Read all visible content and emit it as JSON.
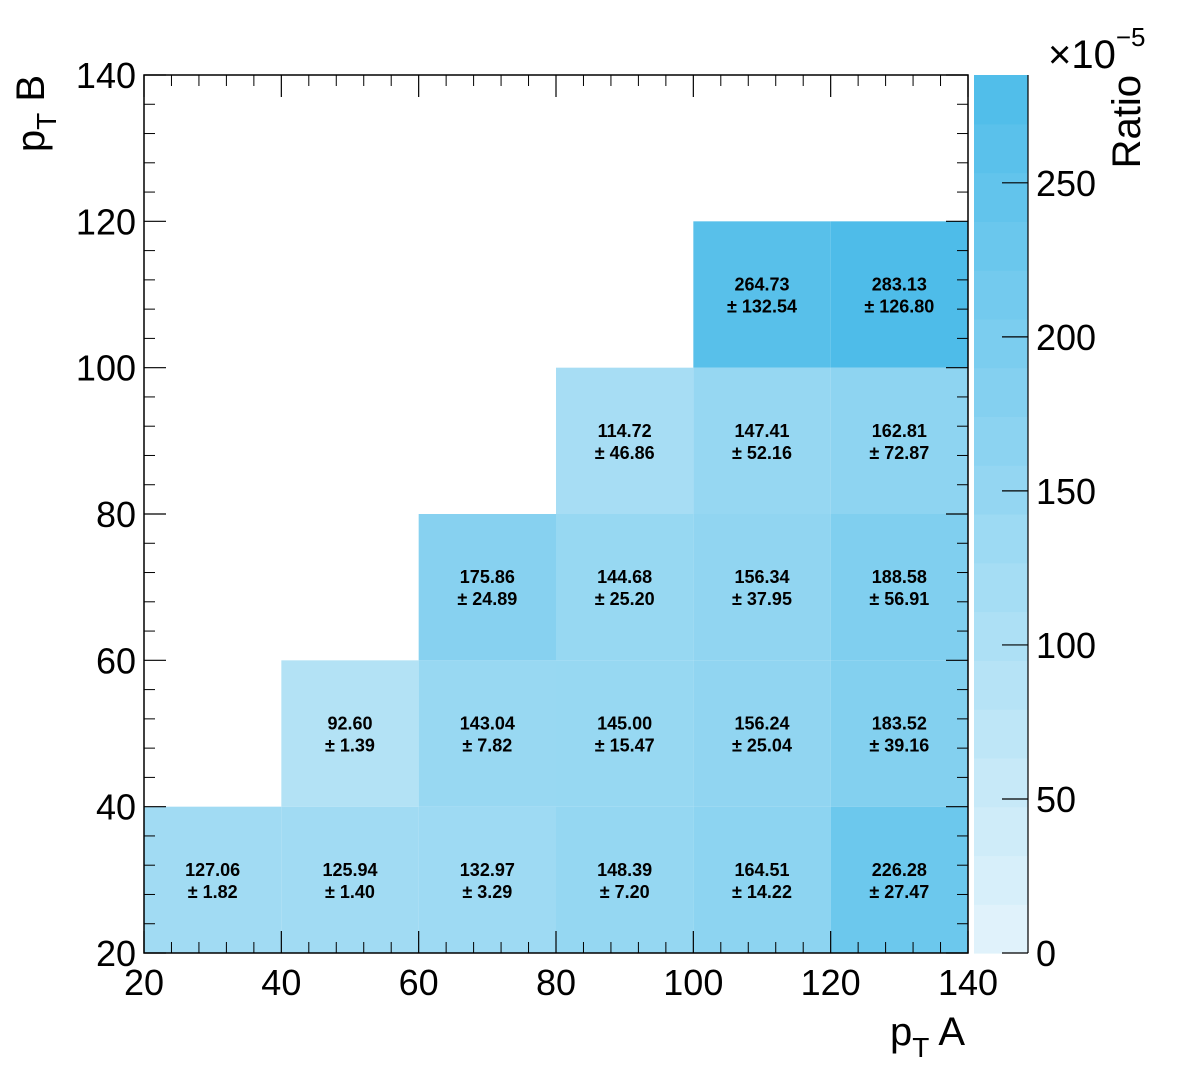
{
  "chart_data": {
    "type": "heatmap",
    "x_axis": {
      "label_main": "p",
      "label_sub": "T",
      "label_suffix": " A",
      "range": [
        20,
        140
      ],
      "ticks": [
        "20",
        "40",
        "60",
        "80",
        "100",
        "120",
        "140"
      ]
    },
    "y_axis": {
      "label_main": "p",
      "label_sub": "T",
      "label_suffix": " B",
      "range": [
        20,
        140
      ],
      "ticks": [
        "20",
        "40",
        "60",
        "80",
        "100",
        "120",
        "140"
      ]
    },
    "colorbar": {
      "label": "Ratio",
      "multiplier_base": "×10",
      "multiplier_exponent": "−5",
      "range": [
        0,
        285
      ],
      "ticks": [
        "0",
        "50",
        "100",
        "150",
        "200",
        "250"
      ],
      "color_low": "#e4f4fb",
      "color_high": "#4dbce9"
    },
    "bin_edges_x": [
      20,
      40,
      60,
      80,
      100,
      120,
      140
    ],
    "bin_edges_y": [
      20,
      40,
      60,
      80,
      100,
      120,
      140
    ],
    "cells": [
      {
        "x": [
          20,
          40
        ],
        "y": [
          20,
          40
        ],
        "value": 127.06,
        "value_text": "127.06",
        "error_text": "± 1.82"
      },
      {
        "x": [
          40,
          60
        ],
        "y": [
          20,
          40
        ],
        "value": 125.94,
        "value_text": "125.94",
        "error_text": "± 1.40"
      },
      {
        "x": [
          60,
          80
        ],
        "y": [
          20,
          40
        ],
        "value": 132.97,
        "value_text": "132.97",
        "error_text": "± 3.29"
      },
      {
        "x": [
          80,
          100
        ],
        "y": [
          20,
          40
        ],
        "value": 148.39,
        "value_text": "148.39",
        "error_text": "± 7.20"
      },
      {
        "x": [
          100,
          120
        ],
        "y": [
          20,
          40
        ],
        "value": 164.51,
        "value_text": "164.51",
        "error_text": "± 14.22"
      },
      {
        "x": [
          120,
          140
        ],
        "y": [
          20,
          40
        ],
        "value": 226.28,
        "value_text": "226.28",
        "error_text": "± 27.47"
      },
      {
        "x": [
          40,
          60
        ],
        "y": [
          40,
          60
        ],
        "value": 92.6,
        "value_text": "92.60",
        "error_text": "± 1.39"
      },
      {
        "x": [
          60,
          80
        ],
        "y": [
          40,
          60
        ],
        "value": 143.04,
        "value_text": "143.04",
        "error_text": "± 7.82"
      },
      {
        "x": [
          80,
          100
        ],
        "y": [
          40,
          60
        ],
        "value": 145.0,
        "value_text": "145.00",
        "error_text": "± 15.47"
      },
      {
        "x": [
          100,
          120
        ],
        "y": [
          40,
          60
        ],
        "value": 156.24,
        "value_text": "156.24",
        "error_text": "± 25.04"
      },
      {
        "x": [
          120,
          140
        ],
        "y": [
          40,
          60
        ],
        "value": 183.52,
        "value_text": "183.52",
        "error_text": "± 39.16"
      },
      {
        "x": [
          60,
          80
        ],
        "y": [
          60,
          80
        ],
        "value": 175.86,
        "value_text": "175.86",
        "error_text": "± 24.89"
      },
      {
        "x": [
          80,
          100
        ],
        "y": [
          60,
          80
        ],
        "value": 144.68,
        "value_text": "144.68",
        "error_text": "± 25.20"
      },
      {
        "x": [
          100,
          120
        ],
        "y": [
          60,
          80
        ],
        "value": 156.34,
        "value_text": "156.34",
        "error_text": "± 37.95"
      },
      {
        "x": [
          120,
          140
        ],
        "y": [
          60,
          80
        ],
        "value": 188.58,
        "value_text": "188.58",
        "error_text": "± 56.91"
      },
      {
        "x": [
          80,
          100
        ],
        "y": [
          80,
          100
        ],
        "value": 114.72,
        "value_text": "114.72",
        "error_text": "± 46.86"
      },
      {
        "x": [
          100,
          120
        ],
        "y": [
          80,
          100
        ],
        "value": 147.41,
        "value_text": "147.41",
        "error_text": "± 52.16"
      },
      {
        "x": [
          120,
          140
        ],
        "y": [
          80,
          100
        ],
        "value": 162.81,
        "value_text": "162.81",
        "error_text": "± 72.87"
      },
      {
        "x": [
          100,
          120
        ],
        "y": [
          100,
          120
        ],
        "value": 264.73,
        "value_text": "264.73",
        "error_text": "± 132.54"
      },
      {
        "x": [
          120,
          140
        ],
        "y": [
          100,
          120
        ],
        "value": 283.13,
        "value_text": "283.13",
        "error_text": "± 126.80"
      }
    ]
  }
}
